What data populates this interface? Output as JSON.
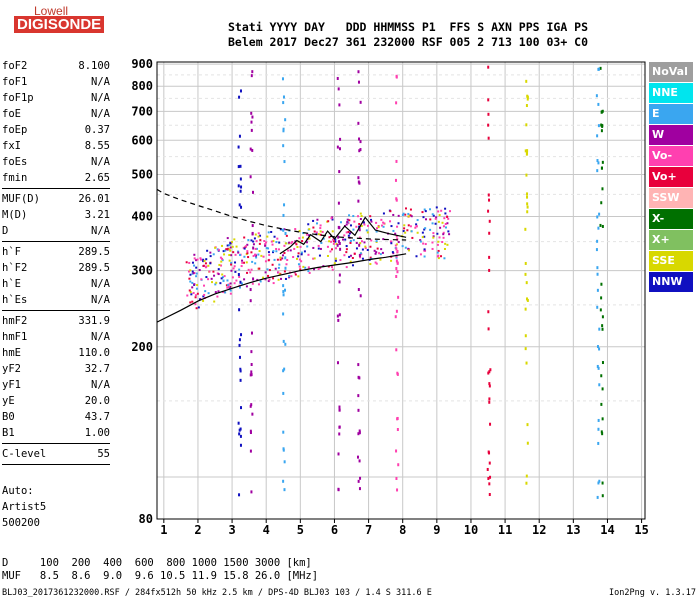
{
  "logo": {
    "top": "Lowell",
    "main": "DIGISONDE"
  },
  "header": {
    "line1": "Stati YYYY DAY   DDD HHMMSS P1  FFS S AXN PPS IGA PS",
    "line2": "Belem 2017 Dec27 361 232000 RSF 005 2 713 100 03+ C0"
  },
  "params": [
    {
      "label": "foF2",
      "value": "8.100"
    },
    {
      "label": "foF1",
      "value": "N/A"
    },
    {
      "label": "foF1p",
      "value": "N/A"
    },
    {
      "label": "foE",
      "value": "N/A"
    },
    {
      "label": "foEp",
      "value": "0.37"
    },
    {
      "label": "fxI",
      "value": "8.55"
    },
    {
      "label": "foEs",
      "value": "N/A"
    },
    {
      "label": "fmin",
      "value": "2.65"
    },
    {
      "sep": true
    },
    {
      "label": "MUF(D)",
      "value": "26.01"
    },
    {
      "label": "M(D)",
      "value": "3.21"
    },
    {
      "label": "D",
      "value": "N/A"
    },
    {
      "sep": true
    },
    {
      "label": "h`F",
      "value": "289.5"
    },
    {
      "label": "h`F2",
      "value": "289.5"
    },
    {
      "label": "h`E",
      "value": "N/A"
    },
    {
      "label": "h`Es",
      "value": "N/A"
    },
    {
      "sep": true
    },
    {
      "label": "hmF2",
      "value": "331.9"
    },
    {
      "label": "hmF1",
      "value": "N/A"
    },
    {
      "label": "hmE",
      "value": "110.0"
    },
    {
      "label": "yF2",
      "value": "32.7"
    },
    {
      "label": "yF1",
      "value": "N/A"
    },
    {
      "label": "yE",
      "value": "20.0"
    },
    {
      "label": "B0",
      "value": "43.7"
    },
    {
      "label": "B1",
      "value": "1.00"
    },
    {
      "sep": true
    },
    {
      "label": "C-level",
      "value": "55"
    },
    {
      "sep": true
    }
  ],
  "auto": {
    "line1": "Auto:",
    "line2": "Artist5",
    "line3": "500200"
  },
  "legend": [
    {
      "label": "NoVal",
      "color": "#9e9e9e"
    },
    {
      "label": "NNE",
      "color": "#00e5ee"
    },
    {
      "label": "E",
      "color": "#3aa6f0"
    },
    {
      "label": "W",
      "color": "#a000a0"
    },
    {
      "label": "Vo-",
      "color": "#ff40b0"
    },
    {
      "label": "Vo+",
      "color": "#e8003c"
    },
    {
      "label": "SSW",
      "color": "#ffb4b4"
    },
    {
      "label": "X-",
      "color": "#007000"
    },
    {
      "label": "X+",
      "color": "#80c060"
    },
    {
      "label": "SSE",
      "color": "#d8d800"
    },
    {
      "label": "NNW",
      "color": "#1010c0"
    }
  ],
  "bottom": {
    "line1": "D     100  200  400  600  800 1000 1500 3000 [km]",
    "line2": "MUF   8.5  8.6  9.0  9.6 10.5 11.9 15.8 26.0 [MHz]"
  },
  "footer": "BLJ03_2017361232000.RSF / 284fx512h 50 kHz 2.5 km / DPS-4D BLJ03 103 / 1.4 S 311.6 E",
  "version": "Ion2Png v. 1.3.17",
  "chart_data": {
    "type": "scatter",
    "title": "",
    "xlabel": "",
    "ylabel": "",
    "xlim": [
      0.8,
      15.1
    ],
    "ylim": [
      80,
      910
    ],
    "y_scale": "log",
    "x_ticks": [
      1,
      2,
      3,
      4,
      5,
      6,
      7,
      8,
      9,
      10,
      11,
      12,
      13,
      14,
      15
    ],
    "y_ticks": [
      80,
      200,
      300,
      400,
      500,
      600,
      700,
      800,
      900
    ],
    "grid": true,
    "legend_position": "right",
    "traces": [
      {
        "name": "O-trace",
        "x": [
          1.8,
          2.0,
          2.3,
          2.6,
          2.8,
          3.0,
          3.3,
          3.6,
          3.9,
          4.2,
          4.5,
          4.8,
          5.1,
          5.5,
          5.9,
          6.3,
          6.6,
          6.9,
          7.3,
          7.7,
          8.1,
          8.5,
          8.9,
          9.2
        ],
        "y": [
          282,
          288,
          295,
          305,
          310,
          315,
          318,
          322,
          324,
          328,
          332,
          336,
          342,
          348,
          352,
          356,
          360,
          360,
          362,
          368,
          372,
          374,
          372,
          370
        ]
      }
    ],
    "profile_solid": {
      "x": [
        0.8,
        1.5,
        2.0,
        2.5,
        3.0,
        3.5,
        4.0,
        4.5,
        5.0,
        5.5,
        6.0,
        6.5,
        7.0,
        7.5,
        8.1
      ],
      "y": [
        228,
        243,
        255,
        265,
        273,
        281,
        288,
        294,
        300,
        305,
        309,
        313,
        318,
        322,
        328
      ]
    },
    "profile_dashed": {
      "x": [
        0.8,
        1.0,
        1.5,
        2.0,
        2.5,
        3.0,
        3.5,
        4.0,
        4.5,
        5.0,
        5.5,
        6.0,
        6.5,
        7.0,
        7.5,
        8.1
      ],
      "y": [
        462,
        452,
        437,
        424,
        412,
        400,
        390,
        381,
        374,
        368,
        363,
        359,
        357,
        355,
        354,
        353
      ]
    },
    "profile_zigzag": {
      "x": [
        4.4,
        4.7,
        4.9,
        5.1,
        5.3,
        5.6,
        5.8,
        6.0,
        6.3,
        6.6,
        6.9,
        7.2,
        7.6,
        8.1
      ],
      "y": [
        328,
        340,
        352,
        345,
        363,
        350,
        370,
        355,
        380,
        362,
        398,
        372,
        365,
        358
      ]
    }
  }
}
